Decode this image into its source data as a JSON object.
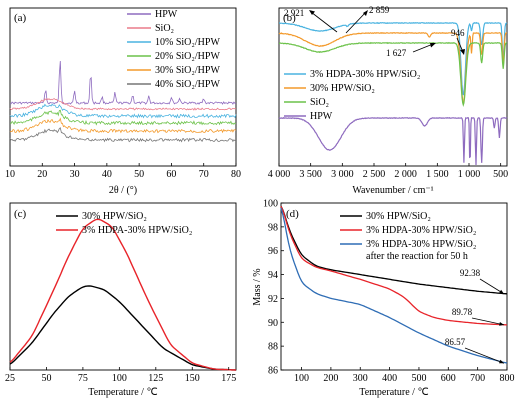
{
  "chart_data": [
    {
      "panel": "(a)",
      "type": "line",
      "xlabel": "2θ / (°)",
      "ylabel": "",
      "xlim": [
        10,
        80
      ],
      "xticks": [
        10,
        20,
        30,
        40,
        50,
        60,
        70,
        80
      ],
      "series": [
        {
          "name": "HPW",
          "color": "#8e6bbf"
        },
        {
          "name": "SiO₂",
          "color": "#ea7b8a"
        },
        {
          "name": "10% SiO₂/HPW",
          "color": "#4ab3e0"
        },
        {
          "name": "20% SiO₂/HPW",
          "color": "#6cc24a"
        },
        {
          "name": "30% SiO₂/HPW",
          "color": "#f39a2c"
        },
        {
          "name": "40% SiO₂/HPW",
          "color": "#777777"
        }
      ]
    },
    {
      "panel": "(b)",
      "type": "line",
      "xlabel": "Wavenumber / cm⁻¹",
      "ylabel": "",
      "xlim": [
        4000,
        400
      ],
      "xticks": [
        4000,
        3500,
        3000,
        2500,
        2000,
        1500,
        1000,
        500
      ],
      "xtick_labels": [
        "4 000",
        "3 500",
        "3 000",
        "2 500",
        "2 000",
        "1 500",
        "1 000",
        "500"
      ],
      "annotations": [
        "2 921",
        "2 859",
        "1 627",
        "946"
      ],
      "series": [
        {
          "name": "3% HDPA-30% HPW/SiO₂",
          "color": "#4ab3e0"
        },
        {
          "name": "30% HPW/SiO₂",
          "color": "#f39a2c"
        },
        {
          "name": "SiO₂",
          "color": "#6cc24a"
        },
        {
          "name": "HPW",
          "color": "#8e6bbf"
        }
      ]
    },
    {
      "panel": "(c)",
      "type": "line",
      "xlabel": "Temperature / ℃",
      "ylabel": "",
      "xlim": [
        25,
        180
      ],
      "xticks": [
        25,
        50,
        75,
        100,
        125,
        150,
        175
      ],
      "series": [
        {
          "name": "30% HPW/SiO₂",
          "color": "#000000",
          "x": [
            25,
            40,
            55,
            65,
            75,
            80,
            90,
            100,
            115,
            130,
            150,
            165,
            180
          ],
          "y": [
            0.03,
            0.16,
            0.34,
            0.44,
            0.5,
            0.505,
            0.48,
            0.41,
            0.27,
            0.13,
            0.03,
            0.005,
            0.0
          ]
        },
        {
          "name": "3% HDPA-30% HPW/SiO₂",
          "color": "#e8242a",
          "x": [
            25,
            40,
            55,
            65,
            75,
            85,
            95,
            105,
            120,
            135,
            150,
            165,
            180
          ],
          "y": [
            0.04,
            0.2,
            0.48,
            0.68,
            0.85,
            0.91,
            0.86,
            0.7,
            0.41,
            0.15,
            0.04,
            0.005,
            0.0
          ]
        }
      ]
    },
    {
      "panel": "(d)",
      "type": "line",
      "xlabel": "Temperature / ℃",
      "ylabel": "Mass / %",
      "xlim": [
        30,
        800
      ],
      "ylim": [
        86,
        100
      ],
      "xticks": [
        100,
        200,
        300,
        400,
        500,
        600,
        700,
        800
      ],
      "yticks": [
        86,
        88,
        90,
        92,
        94,
        96,
        98,
        100
      ],
      "end_labels": [
        "92.38",
        "89.78",
        "86.57"
      ],
      "series": [
        {
          "name": "30% HPW/SiO₂",
          "color": "#000000",
          "x": [
            30,
            60,
            100,
            150,
            200,
            300,
            400,
            500,
            600,
            700,
            800
          ],
          "y": [
            100,
            97.6,
            95.6,
            94.7,
            94.4,
            94.0,
            93.6,
            93.2,
            92.9,
            92.6,
            92.38
          ]
        },
        {
          "name": "3% HDPA-30% HPW/SiO₂",
          "color": "#e8242a",
          "x": [
            30,
            60,
            100,
            150,
            200,
            300,
            400,
            450,
            500,
            550,
            600,
            700,
            800
          ],
          "y": [
            100,
            97.4,
            95.3,
            94.6,
            94.3,
            93.6,
            92.8,
            92.1,
            90.9,
            90.4,
            90.15,
            89.9,
            89.78
          ]
        },
        {
          "name": "3% HDPA-30% HPW/SiO₂ after the reaction for 50 h",
          "legend_lines": [
            "3% HDPA-30% HPW/SiO₂",
            "after the reaction for 50 h"
          ],
          "color": "#2f6db5",
          "x": [
            30,
            60,
            100,
            150,
            200,
            300,
            400,
            500,
            600,
            700,
            800
          ],
          "y": [
            100,
            96.0,
            93.3,
            92.4,
            92.0,
            91.5,
            90.4,
            89.1,
            88.0,
            87.2,
            86.57
          ]
        }
      ]
    }
  ]
}
